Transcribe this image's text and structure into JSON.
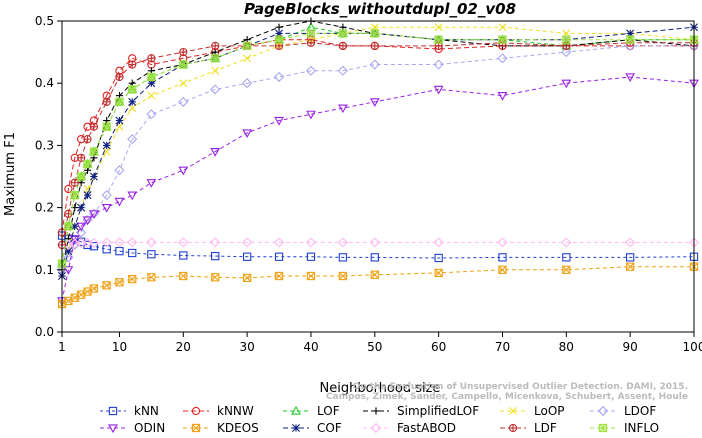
{
  "chart_data": {
    "type": "line",
    "title": "PageBlocks_withoutdupl_02_v08",
    "xlabel": "Neighborhood size",
    "ylabel": "Maximum F1",
    "watermark": [
      "Campos, Zimek, Sander, Campello, Micenkova, Schubert, Assent, Houle",
      "On the Evaluation of Unsupervised Outlier Detection. DAMI, 2015."
    ],
    "xlim": [
      1,
      100
    ],
    "ylim": [
      0.0,
      0.5
    ],
    "xticks": [
      "1",
      "10",
      "20",
      "30",
      "40",
      "50",
      "60",
      "70",
      "80",
      "90",
      "100"
    ],
    "yticks": [
      "0.0",
      "0.1",
      "0.2",
      "0.3",
      "0.4",
      "0.5"
    ],
    "grid": false,
    "legend_position": "bottom",
    "x_keypoints": [
      1,
      2,
      3,
      4,
      5,
      6,
      8,
      10,
      12,
      15,
      20,
      25,
      30,
      35,
      40,
      45,
      50,
      60,
      70,
      80,
      90,
      100
    ],
    "series": [
      {
        "name": "kNN",
        "marker": "square",
        "color": "#1f3fd6",
        "dash": "3,3",
        "values": [
          0.155,
          0.15,
          0.148,
          0.145,
          0.14,
          0.138,
          0.133,
          0.13,
          0.127,
          0.125,
          0.123,
          0.122,
          0.121,
          0.121,
          0.121,
          0.12,
          0.12,
          0.119,
          0.12,
          0.12,
          0.12,
          0.121
        ]
      },
      {
        "name": "kNNW",
        "marker": "circle",
        "color": "#e02020",
        "dash": "5,3",
        "values": [
          0.16,
          0.23,
          0.28,
          0.31,
          0.33,
          0.34,
          0.38,
          0.42,
          0.44,
          0.43,
          0.44,
          0.45,
          0.46,
          0.47,
          0.47,
          0.46,
          0.46,
          0.455,
          0.46,
          0.46,
          0.46,
          0.46
        ]
      },
      {
        "name": "LOF",
        "marker": "triangle",
        "color": "#22cc22",
        "dash": "4,3",
        "values": [
          0.11,
          0.17,
          0.22,
          0.25,
          0.27,
          0.29,
          0.33,
          0.37,
          0.39,
          0.41,
          0.43,
          0.44,
          0.46,
          0.47,
          0.49,
          0.48,
          0.48,
          0.47,
          0.47,
          0.46,
          0.47,
          0.47
        ]
      },
      {
        "name": "SimplifiedLOF",
        "marker": "plus",
        "color": "#000000",
        "dash": "5,3",
        "values": [
          0.1,
          0.15,
          0.2,
          0.24,
          0.26,
          0.28,
          0.34,
          0.38,
          0.4,
          0.42,
          0.43,
          0.45,
          0.47,
          0.49,
          0.5,
          0.49,
          0.48,
          0.47,
          0.46,
          0.46,
          0.47,
          0.46
        ]
      },
      {
        "name": "LoOP",
        "marker": "x",
        "color": "#f0e020",
        "dash": "4,3",
        "values": [
          0.09,
          0.13,
          0.17,
          0.2,
          0.23,
          0.25,
          0.29,
          0.33,
          0.36,
          0.38,
          0.4,
          0.42,
          0.44,
          0.46,
          0.47,
          0.48,
          0.49,
          0.49,
          0.49,
          0.48,
          0.48,
          0.47
        ]
      },
      {
        "name": "LDOF",
        "marker": "diamond",
        "color": "#a8a8f0",
        "dash": "4,3",
        "values": [
          0.1,
          0.12,
          0.14,
          0.16,
          0.18,
          0.19,
          0.22,
          0.26,
          0.31,
          0.35,
          0.37,
          0.39,
          0.4,
          0.41,
          0.42,
          0.42,
          0.43,
          0.43,
          0.44,
          0.45,
          0.46,
          0.46
        ]
      },
      {
        "name": "ODIN",
        "marker": "dtriangle",
        "color": "#9a20e8",
        "dash": "4,3",
        "values": [
          0.05,
          0.1,
          0.15,
          0.17,
          0.18,
          0.19,
          0.2,
          0.21,
          0.22,
          0.24,
          0.26,
          0.29,
          0.32,
          0.34,
          0.35,
          0.36,
          0.37,
          0.39,
          0.38,
          0.4,
          0.41,
          0.4
        ]
      },
      {
        "name": "KDEOS",
        "marker": "squarex",
        "color": "#f0a010",
        "dash": "4,3",
        "values": [
          0.045,
          0.05,
          0.055,
          0.06,
          0.065,
          0.07,
          0.075,
          0.08,
          0.085,
          0.088,
          0.09,
          0.088,
          0.087,
          0.09,
          0.09,
          0.09,
          0.092,
          0.095,
          0.1,
          0.1,
          0.105,
          0.105
        ]
      },
      {
        "name": "COF",
        "marker": "star",
        "color": "#102080",
        "dash": "5,3",
        "values": [
          0.09,
          0.13,
          0.17,
          0.2,
          0.22,
          0.25,
          0.3,
          0.34,
          0.37,
          0.4,
          0.43,
          0.44,
          0.46,
          0.48,
          0.48,
          0.48,
          0.48,
          0.47,
          0.47,
          0.47,
          0.48,
          0.49
        ]
      },
      {
        "name": "FastABOD",
        "marker": "diamond",
        "color": "#ffb8f0",
        "dash": "4,3",
        "values": [
          0.14,
          0.14,
          0.142,
          0.143,
          0.143,
          0.143,
          0.144,
          0.144,
          0.144,
          0.144,
          0.144,
          0.144,
          0.144,
          0.144,
          0.144,
          0.144,
          0.144,
          0.144,
          0.144,
          0.144,
          0.144,
          0.144
        ]
      },
      {
        "name": "LDF",
        "marker": "circleplus",
        "color": "#c03030",
        "dash": "5,3",
        "values": [
          0.14,
          0.19,
          0.24,
          0.28,
          0.31,
          0.33,
          0.37,
          0.41,
          0.43,
          0.44,
          0.45,
          0.46,
          0.46,
          0.46,
          0.465,
          0.46,
          0.46,
          0.46,
          0.465,
          0.46,
          0.465,
          0.465
        ]
      },
      {
        "name": "INFLO",
        "marker": "squarestar",
        "color": "#a0e040",
        "dash": "4,3",
        "values": [
          0.11,
          0.17,
          0.22,
          0.25,
          0.27,
          0.29,
          0.33,
          0.37,
          0.39,
          0.41,
          0.43,
          0.44,
          0.46,
          0.47,
          0.48,
          0.48,
          0.48,
          0.47,
          0.47,
          0.47,
          0.47,
          0.47
        ]
      }
    ]
  }
}
